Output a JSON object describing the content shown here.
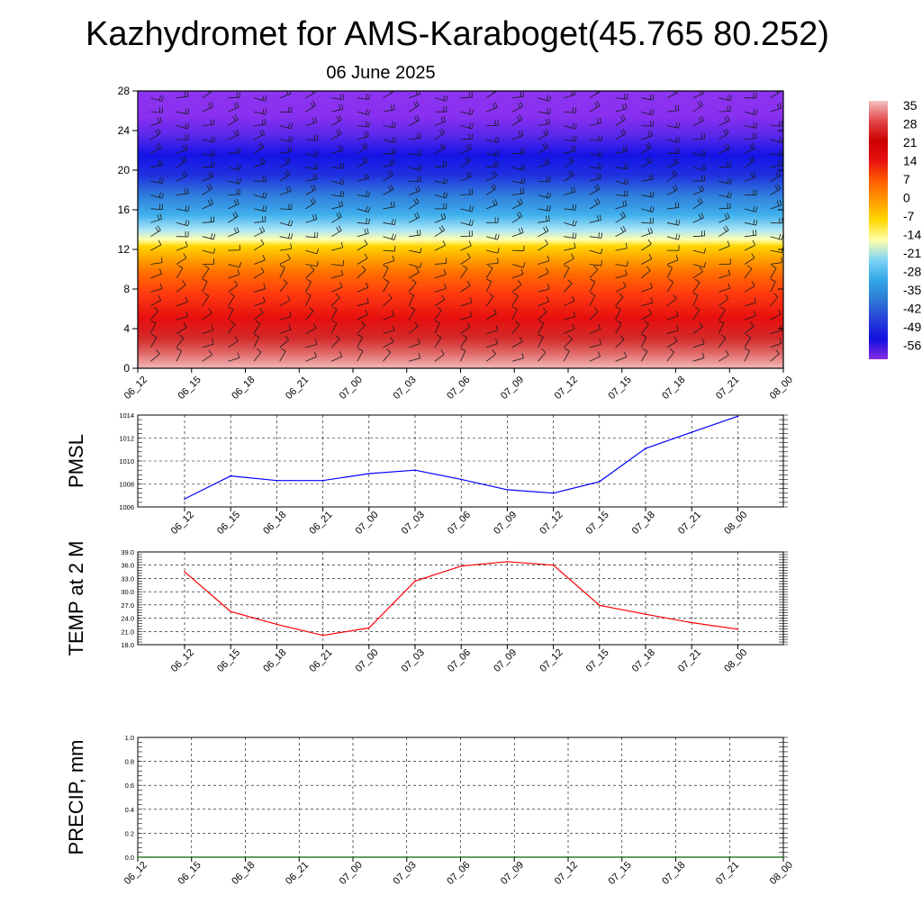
{
  "title": "Kazhydromet for AMS-Karaboget(45.765 80.252)",
  "subtitle": "06 June 2025",
  "chart_data": [
    {
      "id": "cross_section",
      "type": "heatmap",
      "description_of_fill": "temperature vs height with wind barbs",
      "x": [
        "06_12",
        "06_15",
        "06_18",
        "06_21",
        "07_00",
        "07_03",
        "07_06",
        "07_09",
        "07_12",
        "07_15",
        "07_18",
        "07_21",
        "08_00"
      ],
      "y_ticks": [
        0,
        4,
        8,
        12,
        16,
        20,
        24,
        28
      ],
      "ylim": [
        0,
        28
      ],
      "colorbar": {
        "labels": [
          "35",
          "28",
          "21",
          "14",
          "7",
          "0",
          "-7",
          "-14",
          "-21",
          "-28",
          "-35",
          "-42",
          "-49",
          "-56"
        ],
        "colors": [
          "#f4c2c2",
          "#e34848",
          "#cc0000",
          "#e81010",
          "#ff5a00",
          "#ff9a00",
          "#ffd800",
          "#ffffaa",
          "#7fd4f5",
          "#33a8e8",
          "#2e7ad6",
          "#2840d8",
          "#1010e0",
          "#8a2be2"
        ]
      },
      "layers": [
        {
          "h": 0,
          "c": "#f3b8b8"
        },
        {
          "h": 1.5,
          "c": "#e06a6a"
        },
        {
          "h": 3,
          "c": "#d42a2a"
        },
        {
          "h": 5,
          "c": "#e60f0f"
        },
        {
          "h": 7.5,
          "c": "#ff3a10"
        },
        {
          "h": 9.5,
          "c": "#ff6a00"
        },
        {
          "h": 11,
          "c": "#ffa000"
        },
        {
          "h": 12.3,
          "c": "#ffd400"
        },
        {
          "h": 13,
          "c": "#ffffb0"
        },
        {
          "h": 14,
          "c": "#a8e4f8"
        },
        {
          "h": 15.5,
          "c": "#3fb0ec"
        },
        {
          "h": 17.5,
          "c": "#2f7cdc"
        },
        {
          "h": 19.5,
          "c": "#2030e0"
        },
        {
          "h": 21.5,
          "c": "#1414e6"
        },
        {
          "h": 23.5,
          "c": "#5a28ea"
        },
        {
          "h": 25.5,
          "c": "#8a30f0"
        },
        {
          "h": 28,
          "c": "#8c34f2"
        }
      ],
      "warm_cores": [
        {
          "x": "06_15",
          "h": 0,
          "peak": "#f0aaaa"
        },
        {
          "x": "07_09",
          "h": 0,
          "peak": "#f8d0d0"
        }
      ]
    },
    {
      "id": "pmsl",
      "type": "line",
      "ylabel": "PMSL",
      "x": [
        "06_12",
        "06_15",
        "06_18",
        "06_21",
        "07_00",
        "07_03",
        "07_06",
        "07_09",
        "07_12",
        "07_15",
        "07_18",
        "07_21",
        "08_00"
      ],
      "values": [
        1006.7,
        1008.7,
        1008.3,
        1008.3,
        1008.9,
        1009.2,
        1008.4,
        1007.5,
        1007.2,
        1008.2,
        1011.1,
        1012.5,
        1013.9
      ],
      "ylim": [
        1006,
        1014
      ],
      "y_ticks": [
        "1006",
        "1008",
        "1010",
        "1012",
        "1014"
      ],
      "color": "#0000ff",
      "grid": true
    },
    {
      "id": "temp2m",
      "type": "line",
      "ylabel": "TEMP at 2 M",
      "x": [
        "06_12",
        "06_15",
        "06_18",
        "06_21",
        "07_00",
        "07_03",
        "07_06",
        "07_09",
        "07_12",
        "07_15",
        "07_18",
        "07_21",
        "08_00"
      ],
      "values": [
        34.5,
        25.5,
        22.6,
        20.1,
        21.8,
        32.4,
        35.8,
        36.8,
        36.0,
        26.9,
        24.9,
        23.0,
        21.5
      ],
      "ylim": [
        18,
        39
      ],
      "y_ticks": [
        "18.0",
        "21.0",
        "24.0",
        "27.0",
        "30.0",
        "33.0",
        "36.0",
        "39.0"
      ],
      "color": "#ff0000",
      "grid": true
    },
    {
      "id": "precip",
      "type": "line",
      "ylabel": "PRECIP, mm",
      "x": [
        "06_12",
        "06_15",
        "06_18",
        "06_21",
        "07_00",
        "07_03",
        "07_06",
        "07_09",
        "07_12",
        "07_15",
        "07_18",
        "07_21",
        "08_00"
      ],
      "values": [
        0,
        0,
        0,
        0,
        0,
        0,
        0,
        0,
        0,
        0,
        0,
        0,
        0
      ],
      "ylim": [
        0,
        1
      ],
      "y_ticks": [
        "0.0",
        "0.2",
        "0.4",
        "0.6",
        "0.8",
        "1.0"
      ],
      "color": "#006400",
      "grid": true
    }
  ]
}
